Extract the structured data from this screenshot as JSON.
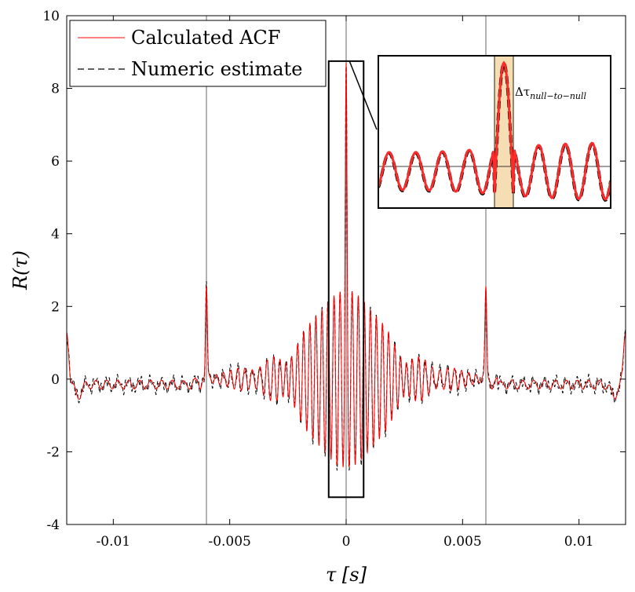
{
  "chart_data": {
    "type": "line",
    "title": "",
    "xlabel": "τ [s]",
    "ylabel": "R(τ)",
    "xlim": [
      -0.012,
      0.012
    ],
    "ylim": [
      -4,
      10
    ],
    "x_ticks": [
      -0.01,
      -0.005,
      0,
      0.005,
      0.01
    ],
    "x_tick_labels": [
      "-0.01",
      "-0.005",
      "0",
      "0.005",
      "0.01"
    ],
    "y_ticks": [
      -4,
      -2,
      0,
      2,
      4,
      6,
      8,
      10
    ],
    "y_tick_labels": [
      "-4",
      "-2",
      "0",
      "2",
      "4",
      "6",
      "8",
      "10"
    ],
    "vertical_reference_lines_x": [
      -0.006,
      0,
      0.006
    ],
    "grid": false,
    "legend_position": "top-left",
    "series": [
      {
        "name": "Calculated ACF",
        "color": "#ff0000",
        "style": "solid",
        "features": {
          "central_peak": {
            "x": 0,
            "y": 8.7
          },
          "side_peaks": [
            {
              "x": -0.006,
              "y": 2.8
            },
            {
              "x": 0.006,
              "y": 2.8
            }
          ],
          "edge_values": [
            {
              "x": -0.012,
              "y": 1.5
            },
            {
              "x": 0.012,
              "y": 1.5
            }
          ],
          "central_min": -2.9
        }
      },
      {
        "name": "Numeric estimate",
        "color": "#000000",
        "style": "dashed",
        "features": {
          "central_peak": {
            "x": 0,
            "y": 8.7
          },
          "side_peaks": [
            {
              "x": -0.006,
              "y": 2.8
            },
            {
              "x": 0.006,
              "y": 2.8
            }
          ],
          "edge_values": [
            {
              "x": -0.012,
              "y": 1.5
            },
            {
              "x": 0.012,
              "y": 1.5
            }
          ],
          "central_min": -2.9
        }
      }
    ],
    "zoom_region": {
      "x_range": [
        -0.00075,
        0.00075
      ],
      "y_range": [
        -3.25,
        8.75
      ]
    },
    "inset": {
      "annotation": "Δτ_null−to−null",
      "annotation_main": "Δτ",
      "annotation_sub": "null−to−null",
      "highlight_color": "#f5deb3",
      "highlight_edge_color": "#d4a017"
    }
  }
}
